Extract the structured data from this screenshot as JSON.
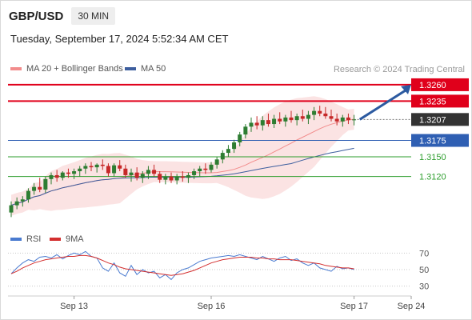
{
  "header": {
    "symbol": "GBP/USD",
    "timeframe": "30 MIN"
  },
  "datetime": "Tuesday, September 17, 2024 5:52:34 AM CET",
  "legend": {
    "ma20_bb": "MA 20 + Bollinger Bands",
    "ma50": "MA 50",
    "rsi": "RSI",
    "ma9": "9MA",
    "credit": "Research © 2024 Trading Central"
  },
  "colors": {
    "resistance": "#e0001b",
    "pivot": "#2f5fb3",
    "support": "#2e9e2e",
    "ma20": "#f28c8c",
    "bollinger_fill": "#fbe3e3",
    "ma50": "#3d5e9e",
    "candle_up": "#2e7d32",
    "candle_down": "#c62828",
    "last_price_bg": "#333333",
    "rsi": "#4a7bd0",
    "rsi_ma": "#d32f2f",
    "arrow": "#2c5aa0"
  },
  "chart_data": {
    "type": "candlestick",
    "price_range": [
      1.3045,
      1.3277
    ],
    "current_price": 1.3207,
    "levels": [
      {
        "value": 1.326,
        "label": "1.3260",
        "kind": "resistance"
      },
      {
        "value": 1.3235,
        "label": "1.3235",
        "kind": "resistance"
      },
      {
        "value": 1.3175,
        "label": "1.3175",
        "kind": "pivot"
      },
      {
        "value": 1.315,
        "label": "1.3150",
        "kind": "support"
      },
      {
        "value": 1.312,
        "label": "1.3120",
        "kind": "support"
      }
    ],
    "current_label": "1.3207",
    "x_labels": [
      {
        "index": 11,
        "label": "Sep 13"
      },
      {
        "index": 35,
        "label": "Sep 16"
      },
      {
        "index": 60,
        "label": "Sep 17"
      },
      {
        "index": 70,
        "label": "Sep 24"
      }
    ],
    "x_count": 71,
    "ohlc": [
      [
        1.3065,
        1.3082,
        1.3058,
        1.3076
      ],
      [
        1.3076,
        1.3088,
        1.307,
        1.3082
      ],
      [
        1.3082,
        1.309,
        1.3074,
        1.3085
      ],
      [
        1.3085,
        1.3102,
        1.308,
        1.3098
      ],
      [
        1.3098,
        1.311,
        1.3092,
        1.3104
      ],
      [
        1.3104,
        1.3118,
        1.3096,
        1.31
      ],
      [
        1.31,
        1.312,
        1.3095,
        1.3116
      ],
      [
        1.3116,
        1.3126,
        1.3108,
        1.3122
      ],
      [
        1.3122,
        1.313,
        1.3112,
        1.3118
      ],
      [
        1.3118,
        1.3128,
        1.3114,
        1.3126
      ],
      [
        1.3126,
        1.3132,
        1.3118,
        1.3124
      ],
      [
        1.3124,
        1.3132,
        1.3116,
        1.3128
      ],
      [
        1.3128,
        1.3136,
        1.312,
        1.3132
      ],
      [
        1.3132,
        1.314,
        1.3124,
        1.3136
      ],
      [
        1.3136,
        1.3142,
        1.3128,
        1.3134
      ],
      [
        1.3134,
        1.314,
        1.3126,
        1.3138
      ],
      [
        1.3138,
        1.3146,
        1.313,
        1.3136
      ],
      [
        1.3136,
        1.314,
        1.312,
        1.3125
      ],
      [
        1.3125,
        1.314,
        1.312,
        1.3137
      ],
      [
        1.3137,
        1.3145,
        1.3128,
        1.3132
      ],
      [
        1.3132,
        1.3138,
        1.3118,
        1.3122
      ],
      [
        1.3122,
        1.3132,
        1.3112,
        1.3126
      ],
      [
        1.3126,
        1.3134,
        1.3114,
        1.3118
      ],
      [
        1.3118,
        1.3128,
        1.311,
        1.3124
      ],
      [
        1.3124,
        1.3136,
        1.3116,
        1.313
      ],
      [
        1.313,
        1.3138,
        1.312,
        1.3124
      ],
      [
        1.3124,
        1.3128,
        1.311,
        1.3115
      ],
      [
        1.3115,
        1.3124,
        1.3108,
        1.312
      ],
      [
        1.312,
        1.3126,
        1.311,
        1.3114
      ],
      [
        1.3114,
        1.3124,
        1.3108,
        1.312
      ],
      [
        1.312,
        1.3128,
        1.3112,
        1.3118
      ],
      [
        1.3118,
        1.3126,
        1.311,
        1.3122
      ],
      [
        1.3122,
        1.3132,
        1.3116,
        1.3128
      ],
      [
        1.3128,
        1.3136,
        1.312,
        1.3132
      ],
      [
        1.3132,
        1.314,
        1.3124,
        1.313
      ],
      [
        1.313,
        1.3142,
        1.3126,
        1.3138
      ],
      [
        1.3138,
        1.315,
        1.3132,
        1.3146
      ],
      [
        1.3146,
        1.316,
        1.314,
        1.3156
      ],
      [
        1.3156,
        1.3168,
        1.315,
        1.3162
      ],
      [
        1.3162,
        1.3176,
        1.3156,
        1.3172
      ],
      [
        1.3172,
        1.3188,
        1.3166,
        1.3184
      ],
      [
        1.3184,
        1.32,
        1.3178,
        1.3196
      ],
      [
        1.3196,
        1.321,
        1.3188,
        1.3202
      ],
      [
        1.3202,
        1.3212,
        1.3192,
        1.3198
      ],
      [
        1.3198,
        1.3212,
        1.319,
        1.3206
      ],
      [
        1.3206,
        1.3216,
        1.3196,
        1.32
      ],
      [
        1.32,
        1.3214,
        1.3194,
        1.3208
      ],
      [
        1.3208,
        1.3218,
        1.32,
        1.3204
      ],
      [
        1.3204,
        1.3214,
        1.3196,
        1.321
      ],
      [
        1.321,
        1.322,
        1.3202,
        1.3206
      ],
      [
        1.3206,
        1.3216,
        1.3198,
        1.3212
      ],
      [
        1.3212,
        1.3222,
        1.3204,
        1.3208
      ],
      [
        1.3208,
        1.322,
        1.32,
        1.3214
      ],
      [
        1.3214,
        1.3226,
        1.3206,
        1.322
      ],
      [
        1.322,
        1.3228,
        1.3212,
        1.3216
      ],
      [
        1.3216,
        1.3226,
        1.3208,
        1.3212
      ],
      [
        1.3212,
        1.3222,
        1.3204,
        1.3208
      ],
      [
        1.3208,
        1.3216,
        1.3198,
        1.3204
      ],
      [
        1.3204,
        1.3214,
        1.3196,
        1.321
      ],
      [
        1.321,
        1.3216,
        1.32,
        1.3206
      ],
      [
        1.3206,
        1.3214,
        1.3198,
        1.3207
      ]
    ],
    "rsi": {
      "levels": [
        70,
        50,
        30
      ],
      "range": [
        20,
        80
      ],
      "values": [
        45,
        52,
        58,
        62,
        60,
        65,
        66,
        64,
        68,
        63,
        67,
        70,
        68,
        72,
        66,
        64,
        52,
        48,
        58,
        46,
        42,
        55,
        44,
        50,
        46,
        48,
        40,
        44,
        38,
        46,
        50,
        52,
        56,
        60,
        62,
        64,
        65,
        66,
        67,
        66,
        68,
        66,
        64,
        62,
        66,
        63,
        60,
        64,
        66,
        61,
        63,
        58,
        55,
        58,
        52,
        50,
        48,
        54,
        51,
        52,
        50
      ],
      "ma": [
        45,
        48,
        52,
        55,
        58,
        60,
        62,
        63,
        64,
        65,
        66,
        66,
        67,
        67,
        66,
        64,
        61,
        58,
        56,
        53,
        51,
        50,
        49,
        48,
        47,
        46,
        45,
        44,
        43,
        44,
        45,
        47,
        49,
        52,
        55,
        58,
        60,
        62,
        63,
        64,
        65,
        65,
        65,
        64,
        64,
        63,
        63,
        62,
        62,
        62,
        61,
        60,
        59,
        58,
        57,
        55,
        54,
        53,
        52,
        52,
        51
      ]
    }
  }
}
